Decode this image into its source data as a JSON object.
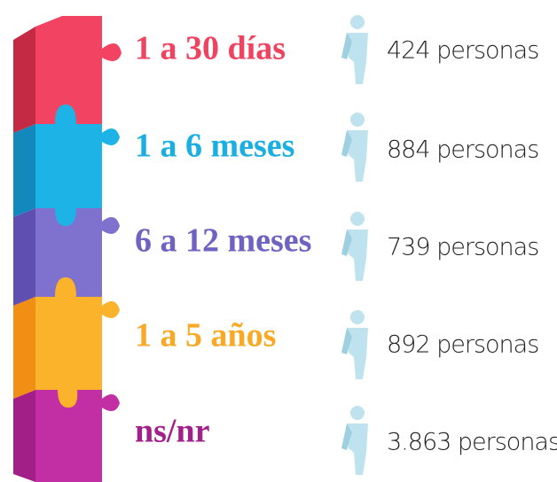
{
  "items": [
    {
      "label": "1 a 30 días",
      "count": "424 personas"
    },
    {
      "label": "1 a 6  meses",
      "count": "884 personas"
    },
    {
      "label": "6 a 12 meses",
      "count": "739 personas"
    },
    {
      "label": "1 a 5 años",
      "count": "892 personas"
    },
    {
      "label": "ns/nr",
      "count": "3.863 personas"
    }
  ]
}
